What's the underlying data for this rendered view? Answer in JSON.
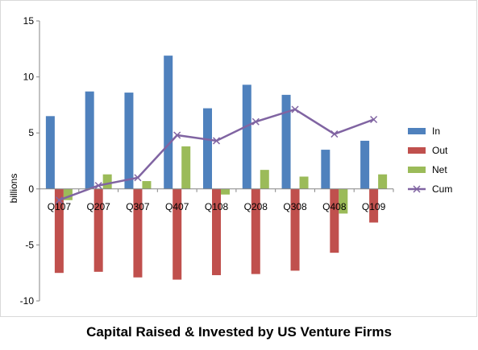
{
  "chart_data": {
    "type": "bar",
    "title": "Capital Raised & Invested by US Venture Firms",
    "xlabel": "",
    "ylabel": "billions",
    "ylim": [
      -10,
      15
    ],
    "yticks": [
      15,
      10,
      5,
      0,
      -5,
      -10
    ],
    "grid": false,
    "legend_position": "right",
    "categories": [
      "Q107",
      "Q207",
      "Q307",
      "Q407",
      "Q108",
      "Q208",
      "Q308",
      "Q408",
      "Q109"
    ],
    "series": [
      {
        "name": "In",
        "type": "bar",
        "color": "#4F81BD",
        "values": [
          6.5,
          8.7,
          8.6,
          11.9,
          7.2,
          9.3,
          8.4,
          3.5,
          4.3
        ]
      },
      {
        "name": "Out",
        "type": "bar",
        "color": "#C0504D",
        "values": [
          -7.5,
          -7.4,
          -7.9,
          -8.1,
          -7.7,
          -7.6,
          -7.3,
          -5.7,
          -3.0
        ]
      },
      {
        "name": "Net",
        "type": "bar",
        "color": "#9BBB59",
        "values": [
          -1.0,
          1.3,
          0.7,
          3.8,
          -0.5,
          1.7,
          1.1,
          -2.2,
          1.3
        ]
      },
      {
        "name": "Cum",
        "type": "line",
        "color": "#8064A2",
        "marker": "x",
        "values": [
          -1.0,
          0.3,
          1.0,
          4.8,
          4.3,
          6.0,
          7.1,
          4.9,
          6.2
        ]
      }
    ]
  }
}
